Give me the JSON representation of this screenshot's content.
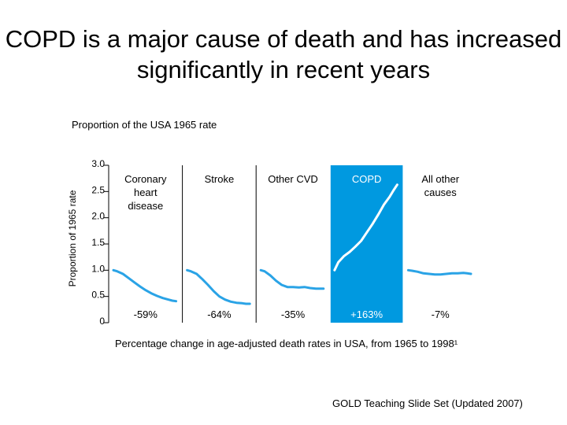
{
  "slide": {
    "title": "COPD is a major cause of death and has increased significantly in recent years",
    "subtitle": "Proportion of the USA 1965 rate",
    "source": "GOLD Teaching Slide Set (Updated 2007)"
  },
  "chart_data": {
    "type": "line",
    "title": "Proportion of the USA 1965 rate",
    "ylabel": "Proportion of 1965 rate",
    "xlabel": "Percentage change in age-adjusted death rates in USA, from 1965 to 1998¹",
    "ylim": [
      0,
      3.0
    ],
    "yticks": [
      {
        "label": "3.0",
        "value": 3.0
      },
      {
        "label": "2.5",
        "value": 2.5
      },
      {
        "label": "2.0",
        "value": 2.0
      },
      {
        "label": "1.5",
        "value": 1.5
      },
      {
        "label": "1.0",
        "value": 1.0
      },
      {
        "label": "0.5",
        "value": 0.5
      },
      {
        "label": "0",
        "value": 0
      }
    ],
    "x_range": [
      1965,
      1998
    ],
    "highlight_panel": "COPD",
    "highlight_color": "#0099e0",
    "line_color": "#2aa3e6",
    "panels": [
      {
        "name": "Coronary heart disease",
        "label": "Coronary\nheart\ndisease",
        "change": "-59%",
        "x": [
          1965,
          1967,
          1970,
          1973,
          1976,
          1979,
          1982,
          1985,
          1988,
          1991,
          1994,
          1996,
          1998
        ],
        "y": [
          1.0,
          0.98,
          0.93,
          0.85,
          0.77,
          0.69,
          0.62,
          0.56,
          0.51,
          0.47,
          0.44,
          0.42,
          0.41
        ]
      },
      {
        "name": "Stroke",
        "label": "Stroke",
        "change": "-64%",
        "x": [
          1965,
          1967,
          1970,
          1973,
          1976,
          1979,
          1982,
          1985,
          1988,
          1991,
          1994,
          1996,
          1998
        ],
        "y": [
          1.0,
          0.98,
          0.93,
          0.83,
          0.72,
          0.6,
          0.5,
          0.44,
          0.4,
          0.38,
          0.37,
          0.36,
          0.36
        ]
      },
      {
        "name": "Other CVD",
        "label": "Other CVD",
        "change": "-35%",
        "x": [
          1965,
          1967,
          1970,
          1973,
          1976,
          1979,
          1982,
          1985,
          1988,
          1991,
          1994,
          1996,
          1998
        ],
        "y": [
          1.0,
          0.98,
          0.9,
          0.8,
          0.72,
          0.68,
          0.68,
          0.67,
          0.68,
          0.66,
          0.65,
          0.65,
          0.65
        ]
      },
      {
        "name": "COPD",
        "label": "COPD",
        "change": "+163%",
        "x": [
          1965,
          1967,
          1970,
          1973,
          1976,
          1979,
          1982,
          1985,
          1988,
          1991,
          1994,
          1996,
          1998
        ],
        "y": [
          1.0,
          1.15,
          1.27,
          1.35,
          1.45,
          1.56,
          1.72,
          1.88,
          2.06,
          2.25,
          2.4,
          2.52,
          2.63
        ]
      },
      {
        "name": "All other causes",
        "label": "All other\ncauses",
        "change": "-7%",
        "x": [
          1965,
          1967,
          1970,
          1973,
          1976,
          1979,
          1982,
          1985,
          1988,
          1991,
          1994,
          1996,
          1998
        ],
        "y": [
          1.0,
          0.99,
          0.97,
          0.94,
          0.93,
          0.92,
          0.92,
          0.93,
          0.94,
          0.94,
          0.95,
          0.94,
          0.93
        ]
      }
    ]
  }
}
